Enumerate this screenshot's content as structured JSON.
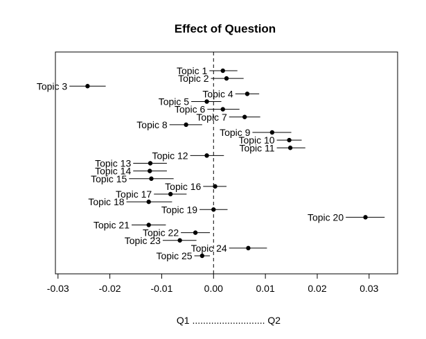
{
  "chart_data": {
    "type": "scatter",
    "title": "Effect of Question",
    "xlabel": "Q1 ........................... Q2",
    "ylabel": "",
    "xlim": [
      -0.0305,
      0.0355
    ],
    "xticks": [
      -0.03,
      -0.02,
      -0.01,
      0.0,
      0.01,
      0.02,
      0.03
    ],
    "xtick_labels": [
      "-0.03",
      "-0.02",
      "-0.01",
      "0.00",
      "0.01",
      "0.02",
      "0.03"
    ],
    "reference_line": 0,
    "grid": false,
    "legend": "none",
    "points": [
      {
        "label": "Topic 1",
        "x": 0.0018,
        "lo": -0.0008,
        "hi": 0.0046,
        "label_side": "left"
      },
      {
        "label": "Topic 2",
        "x": 0.0025,
        "lo": -0.0005,
        "hi": 0.0058,
        "label_side": "left"
      },
      {
        "label": "Topic 3",
        "x": -0.0243,
        "lo": -0.0278,
        "hi": -0.0208,
        "label_side": "left"
      },
      {
        "label": "Topic 4",
        "x": 0.0065,
        "lo": 0.0042,
        "hi": 0.0088,
        "label_side": "left"
      },
      {
        "label": "Topic 5",
        "x": -0.0013,
        "lo": -0.0043,
        "hi": 0.0015,
        "label_side": "left"
      },
      {
        "label": "Topic 6",
        "x": 0.0018,
        "lo": -0.0012,
        "hi": 0.005,
        "label_side": "left"
      },
      {
        "label": "Topic 7",
        "x": 0.006,
        "lo": 0.003,
        "hi": 0.009,
        "label_side": "left"
      },
      {
        "label": "Topic 8",
        "x": -0.0053,
        "lo": -0.0085,
        "hi": -0.0022,
        "label_side": "left"
      },
      {
        "label": "Topic 9",
        "x": 0.0113,
        "lo": 0.0075,
        "hi": 0.015,
        "label_side": "left"
      },
      {
        "label": "Topic 10",
        "x": 0.0146,
        "lo": 0.0122,
        "hi": 0.017,
        "label_side": "left"
      },
      {
        "label": "Topic 11",
        "x": 0.0148,
        "lo": 0.0122,
        "hi": 0.0177,
        "label_side": "left"
      },
      {
        "label": "Topic 12",
        "x": -0.0013,
        "lo": -0.0045,
        "hi": 0.002,
        "label_side": "left"
      },
      {
        "label": "Topic 13",
        "x": -0.0122,
        "lo": -0.0155,
        "hi": -0.009,
        "label_side": "left"
      },
      {
        "label": "Topic 14",
        "x": -0.0123,
        "lo": -0.0155,
        "hi": -0.009,
        "label_side": "left"
      },
      {
        "label": "Topic 15",
        "x": -0.012,
        "lo": -0.0163,
        "hi": -0.0077,
        "label_side": "left"
      },
      {
        "label": "Topic 16",
        "x": 0.0003,
        "lo": -0.002,
        "hi": 0.0025,
        "label_side": "left"
      },
      {
        "label": "Topic 17",
        "x": -0.0083,
        "lo": -0.0115,
        "hi": -0.0052,
        "label_side": "left"
      },
      {
        "label": "Topic 18",
        "x": -0.0125,
        "lo": -0.0168,
        "hi": -0.008,
        "label_side": "left"
      },
      {
        "label": "Topic 19",
        "x": 0.0,
        "lo": -0.0027,
        "hi": 0.0027,
        "label_side": "left"
      },
      {
        "label": "Topic 20",
        "x": 0.0293,
        "lo": 0.0255,
        "hi": 0.033,
        "label_side": "left"
      },
      {
        "label": "Topic 21",
        "x": -0.0125,
        "lo": -0.0158,
        "hi": -0.0092,
        "label_side": "left"
      },
      {
        "label": "Topic 22",
        "x": -0.0035,
        "lo": -0.0063,
        "hi": -0.0007,
        "label_side": "left"
      },
      {
        "label": "Topic 23",
        "x": -0.0065,
        "lo": -0.0098,
        "hi": -0.0033,
        "label_side": "left"
      },
      {
        "label": "Topic 24",
        "x": 0.0067,
        "lo": 0.003,
        "hi": 0.0103,
        "label_side": "left"
      },
      {
        "label": "Topic 25",
        "x": -0.0022,
        "lo": -0.0037,
        "hi": -0.0007,
        "label_side": "left"
      }
    ]
  },
  "colors": {
    "ink": "#000000",
    "background": "#ffffff"
  }
}
